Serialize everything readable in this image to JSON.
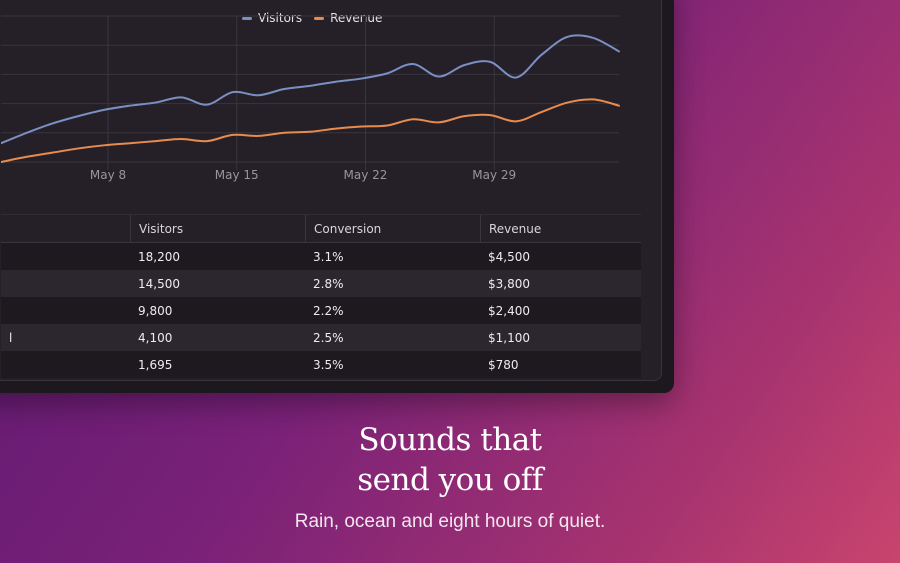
{
  "chart": {
    "legend": [
      {
        "name": "Visitors",
        "color": "#7a8fc4"
      },
      {
        "name": "Revenue",
        "color": "#e88b4f"
      }
    ]
  },
  "chart_data": {
    "type": "line",
    "x_tick_labels": [
      "May 8",
      "May 15",
      "May 22",
      "May 29"
    ],
    "series": [
      {
        "name": "Visitors",
        "color": "#7a8fc4",
        "values": [
          18,
          28,
          37,
          44,
          50,
          54,
          57,
          62,
          55,
          67,
          64,
          70,
          73,
          77,
          80,
          85,
          94,
          82,
          93,
          96,
          81,
          103,
          120,
          119,
          106
        ]
      },
      {
        "name": "Revenue",
        "color": "#e88b4f",
        "values": [
          0,
          5,
          9,
          13,
          16,
          18,
          20,
          22,
          20,
          26,
          25,
          28,
          29,
          32,
          34,
          35,
          41,
          38,
          44,
          45,
          39,
          48,
          57,
          60,
          54
        ]
      }
    ],
    "grid": true
  },
  "table": {
    "headers": [
      "",
      "Visitors",
      "Conversion",
      "Revenue"
    ],
    "rows": [
      {
        "name": "",
        "visitors": "18,200",
        "conversion": "3.1%",
        "revenue": "$4,500"
      },
      {
        "name": "",
        "visitors": "14,500",
        "conversion": "2.8%",
        "revenue": "$3,800"
      },
      {
        "name": "",
        "visitors": "9,800",
        "conversion": "2.2%",
        "revenue": "$2,400"
      },
      {
        "name": "l",
        "visitors": "4,100",
        "conversion": "2.5%",
        "revenue": "$1,100"
      },
      {
        "name": "",
        "visitors": "1,695",
        "conversion": "3.5%",
        "revenue": "$780"
      }
    ]
  },
  "hero": {
    "title_line1": "Sounds that",
    "title_line2": "send you off",
    "subtitle": "Rain, ocean and eight hours of quiet."
  }
}
